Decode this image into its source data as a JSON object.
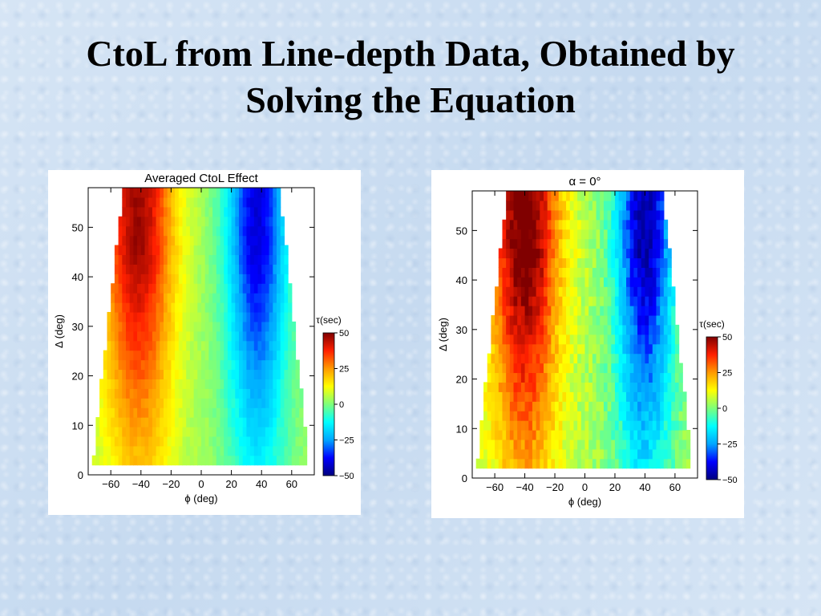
{
  "slide": {
    "title_line1": "CtoL from Line-depth Data, Obtained by",
    "title_line2": "Solving the Equation"
  },
  "chart_data": [
    {
      "type": "heatmap",
      "title": "Averaged CtoL Effect",
      "xlabel": "ϕ (deg)",
      "ylabel": "Δ (deg)",
      "xlim": [
        -75,
        75
      ],
      "ylim": [
        0,
        58
      ],
      "x_ticks": [
        "−60",
        "−40",
        "−20",
        "0",
        "20",
        "40",
        "60"
      ],
      "y_ticks": [
        "0",
        "10",
        "20",
        "30",
        "40",
        "50"
      ],
      "colorbar": {
        "label": "τ(sec)",
        "range": [
          -50,
          50
        ],
        "ticks": [
          "50",
          "25",
          "0",
          "−25",
          "−50"
        ],
        "colors": [
          "#00007f",
          "#0000ff",
          "#00a6ff",
          "#00ffff",
          "#7dff7a",
          "#ffff00",
          "#ff9a00",
          "#ff2000",
          "#800000"
        ]
      },
      "description": "tau ≈ +40 s for phi −60 to −20, near 0 around phi ≈ 0, ≈ −40 s for phi 20 to 50; magnitude grows with Delta",
      "grid": false,
      "legend": "right"
    },
    {
      "type": "heatmap",
      "title": "α = 0°",
      "xlabel": "ϕ (deg)",
      "ylabel": "Δ (deg)",
      "xlim": [
        -75,
        75
      ],
      "ylim": [
        0,
        58
      ],
      "x_ticks": [
        "−60",
        "−40",
        "−20",
        "0",
        "20",
        "40",
        "60"
      ],
      "y_ticks": [
        "0",
        "10",
        "20",
        "30",
        "40",
        "50"
      ],
      "colorbar": {
        "label": "τ(sec)",
        "range": [
          -50,
          50
        ],
        "ticks": [
          "50",
          "25",
          "0",
          "−25",
          "−50"
        ],
        "colors": [
          "#00007f",
          "#0000ff",
          "#00a6ff",
          "#00ffff",
          "#7dff7a",
          "#ffff00",
          "#ff9a00",
          "#ff2000",
          "#800000"
        ]
      },
      "description": "tau ≈ +45 s for phi −60 to −20, near 0 around phi ≈ 0, ≈ −45 s for phi 30 to 55; magnitude grows with Delta",
      "grid": false,
      "legend": "right"
    }
  ]
}
